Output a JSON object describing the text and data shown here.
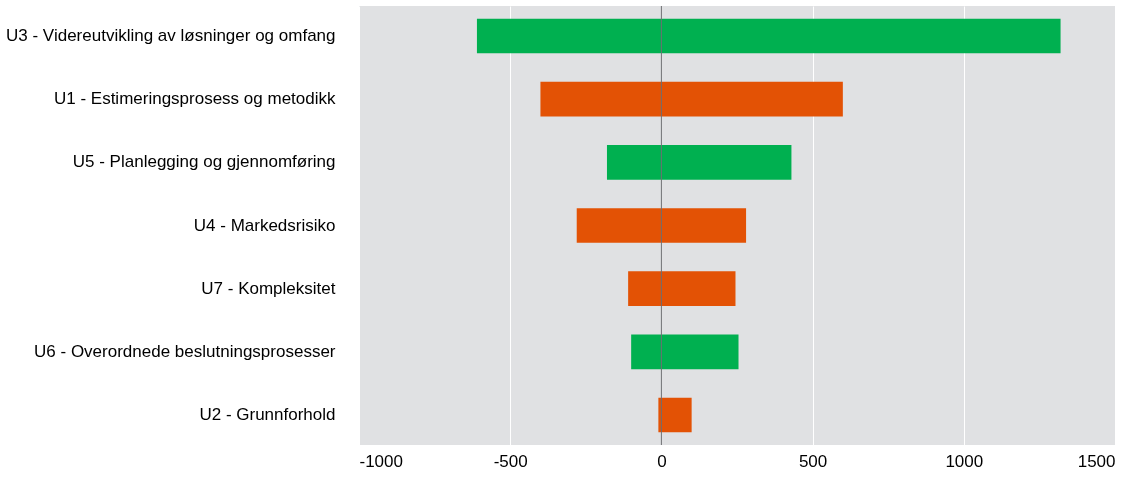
{
  "chart_data": {
    "type": "bar",
    "orientation": "horizontal",
    "categories": [
      "U3 - Videreutvikling av løsninger og omfang",
      "U1 - Estimeringsprosess og metodikk",
      "U5 - Planlegging og gjennomføring",
      "U4 - Markedsrisiko",
      "U7 - Kompleksitet",
      "U6 - Overordnede beslutningsprosesser",
      "U2 - Grunnforhold"
    ],
    "base": [
      -610,
      -400,
      -180,
      -280,
      -110,
      -100,
      -10
    ],
    "values": [
      1930,
      1000,
      610,
      560,
      355,
      355,
      110
    ],
    "colors": [
      "#00b050",
      "#e35205",
      "#00b050",
      "#e35205",
      "#e35205",
      "#00b050",
      "#e35205"
    ],
    "xlim": [
      -1000,
      1500
    ],
    "xticks": [
      -1000,
      -500,
      0,
      500,
      1000,
      1500
    ],
    "grid": "x",
    "ref_lines": [
      {
        "axis": "x",
        "value": 0,
        "color": "#6d6e71"
      }
    ]
  }
}
